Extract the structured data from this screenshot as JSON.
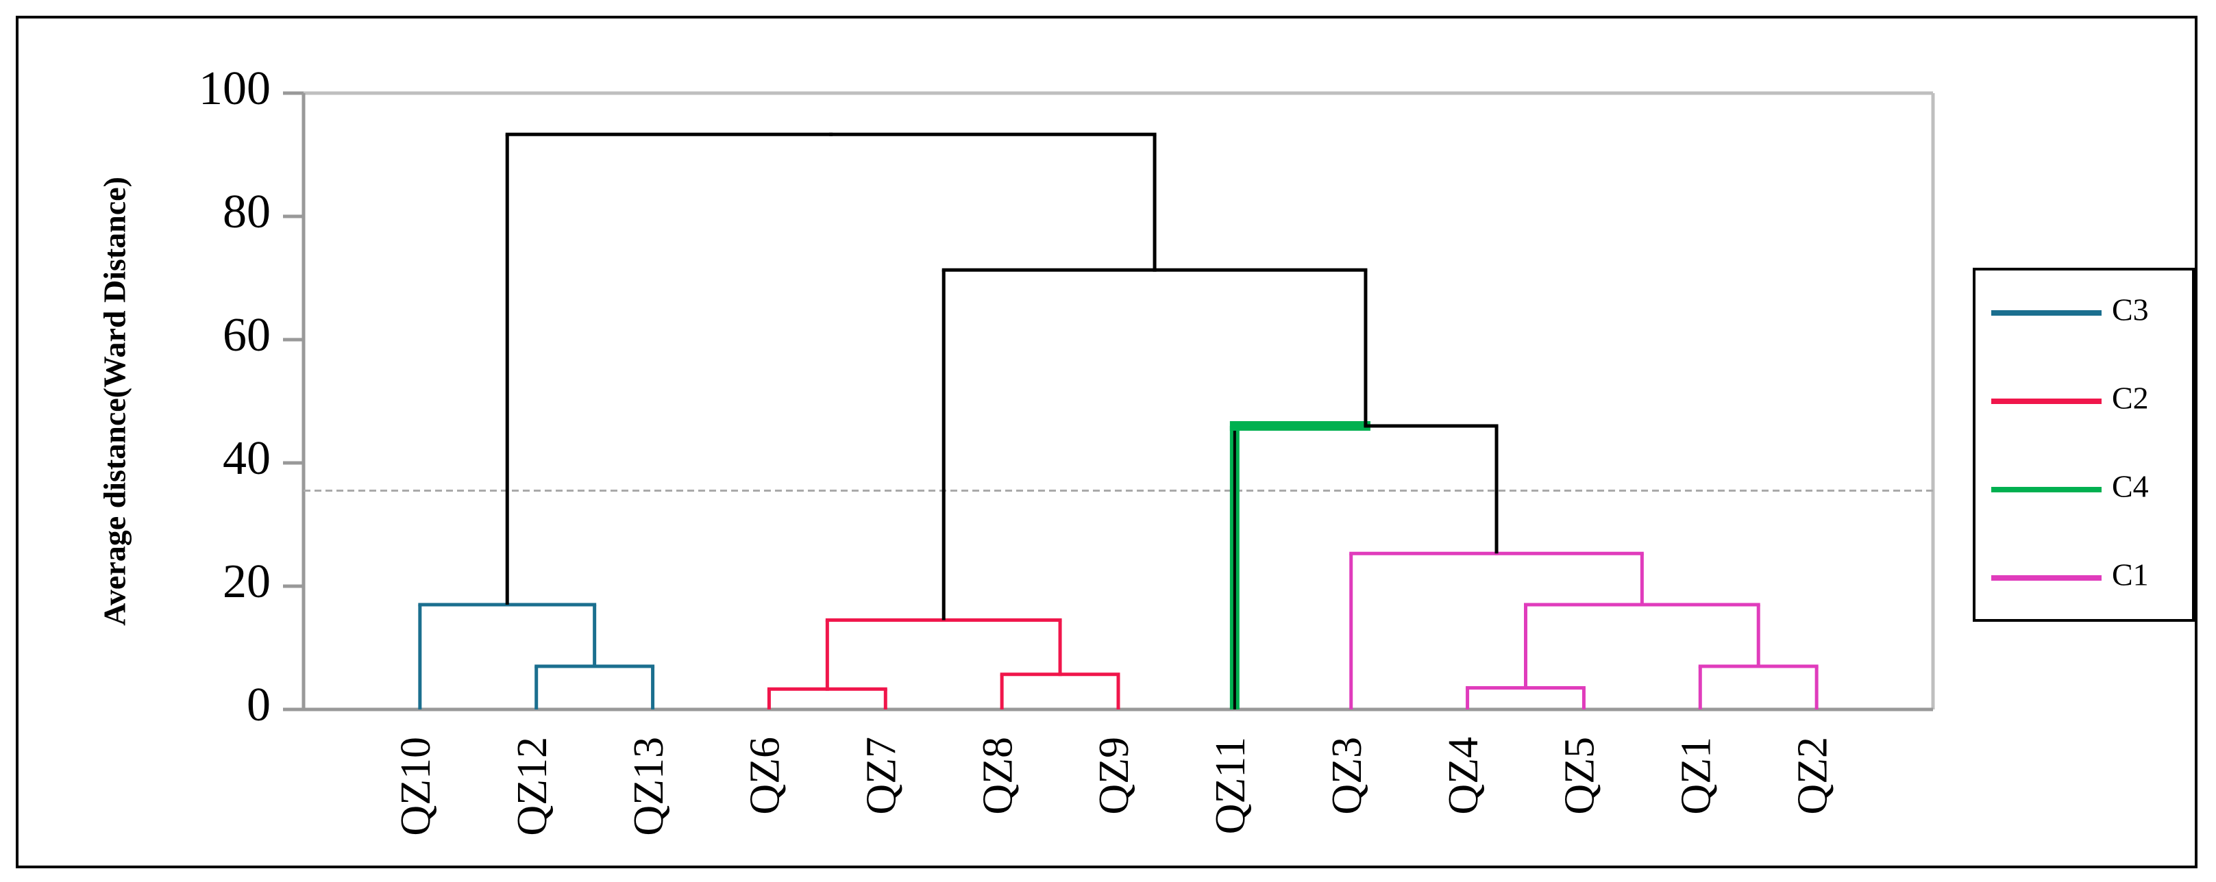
{
  "chart_data": {
    "type": "dendrogram",
    "y_label": "Average distance(Ward Distance)",
    "ylim": [
      0,
      100
    ],
    "yticks": [
      0,
      20,
      40,
      60,
      80,
      100
    ],
    "categories": [
      "QZ10",
      "QZ12",
      "QZ13",
      "QZ6",
      "QZ7",
      "QZ8",
      "QZ9",
      "QZ11",
      "QZ3",
      "QZ4",
      "QZ5",
      "QZ1",
      "QZ2"
    ],
    "merges": [
      {
        "children": [
          1,
          2
        ],
        "height": 7,
        "colors": [
          "#1b6f8f",
          "#1b6f8f"
        ]
      },
      {
        "children": [
          0,
          13
        ],
        "height": 17,
        "colors": [
          "#1b6f8f",
          "#1b6f8f"
        ]
      },
      {
        "children": [
          3,
          4
        ],
        "height": 3.3,
        "colors": [
          "#f0164b",
          "#f0164b"
        ]
      },
      {
        "children": [
          5,
          6
        ],
        "height": 5.7,
        "colors": [
          "#f0164b",
          "#f0164b"
        ]
      },
      {
        "children": [
          15,
          16
        ],
        "height": 14.5,
        "colors": [
          "#f0164b",
          "#f0164b"
        ]
      },
      {
        "children": [
          9,
          10
        ],
        "height": 3.5,
        "colors": [
          "#e03cbc",
          "#e03cbc"
        ]
      },
      {
        "children": [
          11,
          12
        ],
        "height": 7,
        "colors": [
          "#e03cbc",
          "#e03cbc"
        ]
      },
      {
        "children": [
          18,
          19
        ],
        "height": 17,
        "colors": [
          "#e03cbc",
          "#e03cbc"
        ]
      },
      {
        "children": [
          8,
          20
        ],
        "height": 25.3,
        "colors": [
          "#e03cbc",
          "#e03cbc"
        ]
      },
      {
        "children": [
          7,
          21
        ],
        "height": 46,
        "colors": [
          "#00b050",
          "#000000"
        ]
      },
      {
        "children": [
          17,
          22
        ],
        "height": 71.3,
        "colors": [
          "#000000",
          "#000000"
        ]
      },
      {
        "children": [
          14,
          23
        ],
        "height": 93.3,
        "colors": [
          "#000000",
          "#000000"
        ]
      }
    ],
    "cut_line": 35.5,
    "legend": [
      {
        "name": "C3",
        "color": "#1b6f8f"
      },
      {
        "name": "C2",
        "color": "#f0164b"
      },
      {
        "name": "C4",
        "color": "#00b050"
      },
      {
        "name": "C1",
        "color": "#e03cbc"
      }
    ]
  }
}
